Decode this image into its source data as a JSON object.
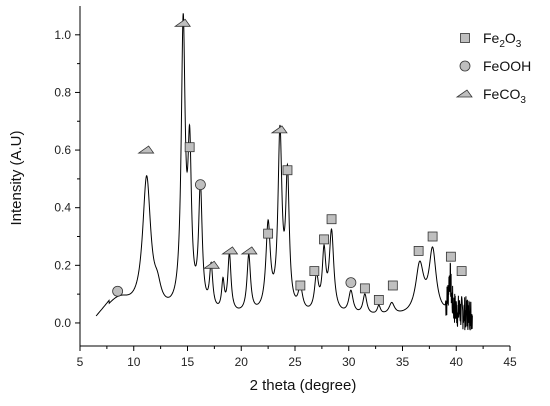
{
  "chart_data": {
    "type": "line",
    "xlabel": "2 theta (degree)",
    "ylabel": "Intensity (A.U)",
    "xlim": [
      5,
      45
    ],
    "ylim": [
      -0.08,
      1.1
    ],
    "xticks": [
      5,
      10,
      15,
      20,
      25,
      30,
      35,
      40,
      45
    ],
    "yticks": [
      0.0,
      0.2,
      0.4,
      0.6,
      0.8,
      1.0
    ],
    "xtick_labels": [
      "5",
      "10",
      "15",
      "20",
      "25",
      "30",
      "35",
      "40",
      "45"
    ],
    "ytick_labels": [
      "0.0",
      "0.2",
      "0.4",
      "0.6",
      "0.8",
      "1.0"
    ],
    "grid": false,
    "legend_position": "top-right",
    "baseline": {
      "x_start": 6.5,
      "y_start": 0.02,
      "x_end": 41.5
    },
    "peaks": [
      {
        "x": 8.5,
        "height": 0.06,
        "width": 1.6
      },
      {
        "x": 11.2,
        "height": 0.46,
        "width": 0.45
      },
      {
        "x": 12.2,
        "height": 0.06,
        "width": 0.4
      },
      {
        "x": 14.6,
        "height": 0.98,
        "width": 0.22
      },
      {
        "x": 15.2,
        "height": 0.52,
        "width": 0.2
      },
      {
        "x": 16.2,
        "height": 0.42,
        "width": 0.2
      },
      {
        "x": 17.2,
        "height": 0.15,
        "width": 0.18
      },
      {
        "x": 18.3,
        "height": 0.1,
        "width": 0.15
      },
      {
        "x": 18.9,
        "height": 0.2,
        "width": 0.18
      },
      {
        "x": 20.7,
        "height": 0.2,
        "width": 0.2
      },
      {
        "x": 22.5,
        "height": 0.3,
        "width": 0.25
      },
      {
        "x": 23.6,
        "height": 0.61,
        "width": 0.22
      },
      {
        "x": 24.3,
        "height": 0.46,
        "width": 0.2
      },
      {
        "x": 25.5,
        "height": 0.08,
        "width": 0.25
      },
      {
        "x": 27.0,
        "height": 0.12,
        "width": 0.22
      },
      {
        "x": 27.7,
        "height": 0.2,
        "width": 0.2
      },
      {
        "x": 28.4,
        "height": 0.28,
        "width": 0.25
      },
      {
        "x": 30.2,
        "height": 0.08,
        "width": 0.25
      },
      {
        "x": 31.5,
        "height": 0.07,
        "width": 0.22
      },
      {
        "x": 32.8,
        "height": 0.03,
        "width": 0.18
      },
      {
        "x": 34.0,
        "height": 0.04,
        "width": 0.3
      },
      {
        "x": 36.6,
        "height": 0.17,
        "width": 0.45
      },
      {
        "x": 37.8,
        "height": 0.22,
        "width": 0.4
      },
      {
        "x": 39.4,
        "height": 0.12,
        "width": 0.15
      }
    ],
    "noise_region": {
      "x_start": 39.0,
      "x_end": 41.5,
      "amplitude": 0.06
    },
    "markers": {
      "Fe2O3": [
        {
          "x": 15.2,
          "y": 0.61
        },
        {
          "x": 24.3,
          "y": 0.53
        },
        {
          "x": 22.5,
          "y": 0.31
        },
        {
          "x": 28.4,
          "y": 0.36
        },
        {
          "x": 27.7,
          "y": 0.29
        },
        {
          "x": 26.8,
          "y": 0.18
        },
        {
          "x": 25.5,
          "y": 0.13
        },
        {
          "x": 31.5,
          "y": 0.12
        },
        {
          "x": 32.8,
          "y": 0.08
        },
        {
          "x": 34.1,
          "y": 0.13
        },
        {
          "x": 36.5,
          "y": 0.25
        },
        {
          "x": 37.8,
          "y": 0.3
        },
        {
          "x": 39.5,
          "y": 0.23
        },
        {
          "x": 40.5,
          "y": 0.18
        }
      ],
      "FeOOH": [
        {
          "x": 8.5,
          "y": 0.11
        },
        {
          "x": 16.2,
          "y": 0.48
        },
        {
          "x": 30.2,
          "y": 0.14
        }
      ],
      "FeCO3": [
        {
          "x": 11.2,
          "y": 0.6
        },
        {
          "x": 14.6,
          "y": 1.04
        },
        {
          "x": 17.3,
          "y": 0.2
        },
        {
          "x": 19.0,
          "y": 0.25
        },
        {
          "x": 20.8,
          "y": 0.25
        },
        {
          "x": 23.6,
          "y": 0.67
        }
      ]
    },
    "legend": [
      {
        "key": "Fe2O3",
        "text_main": "Fe",
        "sub1": "2",
        "mid": "O",
        "sub2": "3",
        "shape": "square"
      },
      {
        "key": "FeOOH",
        "text_main": "FeOOH",
        "shape": "circle"
      },
      {
        "key": "FeCO3",
        "text_main": "FeCO",
        "sub1": "3",
        "shape": "wedge"
      }
    ],
    "colors": {
      "line": "#000000",
      "marker_fill": "#bfbfbf",
      "marker_stroke": "#333333"
    }
  }
}
